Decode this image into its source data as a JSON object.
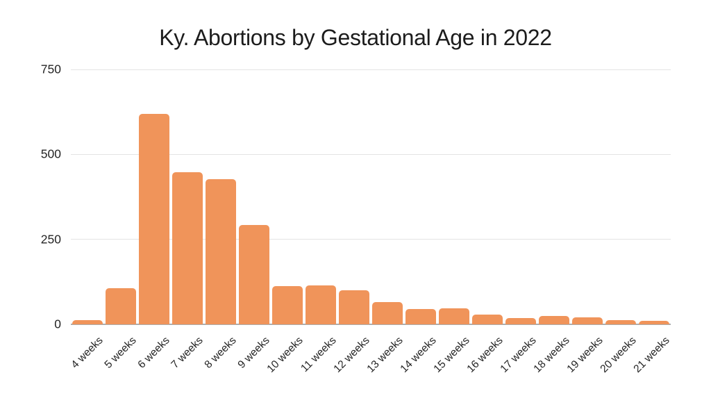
{
  "title": "Ky. Abortions by Gestational Age in 2022",
  "chart_data": {
    "type": "bar",
    "title": "Ky. Abortions by Gestational Age in 2022",
    "categories": [
      "4 weeks",
      "5 weeks",
      "6 weeks",
      "7 weeks",
      "8 weeks",
      "9 weeks",
      "10 weeks",
      "11 weeks",
      "12 weeks",
      "13 weeks",
      "14 weeks",
      "15 weeks",
      "16 weeks",
      "17 weeks",
      "18 weeks",
      "19 weeks",
      "20 weeks",
      "21 weeks"
    ],
    "values": [
      12,
      106,
      620,
      448,
      427,
      292,
      113,
      114,
      100,
      66,
      46,
      48,
      29,
      19,
      24,
      21,
      13,
      10
    ],
    "xlabel": "",
    "ylabel": "",
    "ylim": [
      0,
      750
    ],
    "yticks": [
      0,
      250,
      500,
      750
    ],
    "grid": true,
    "legend": false,
    "x_label_rotation_deg": -45,
    "bar_color": "#F0945A",
    "background_color": "#FFFFFF",
    "gridline_color": "#E4E4E4",
    "axis_line_color": "#ADADAD",
    "text_color": "#242424",
    "title_color": "#1C1C1C"
  }
}
